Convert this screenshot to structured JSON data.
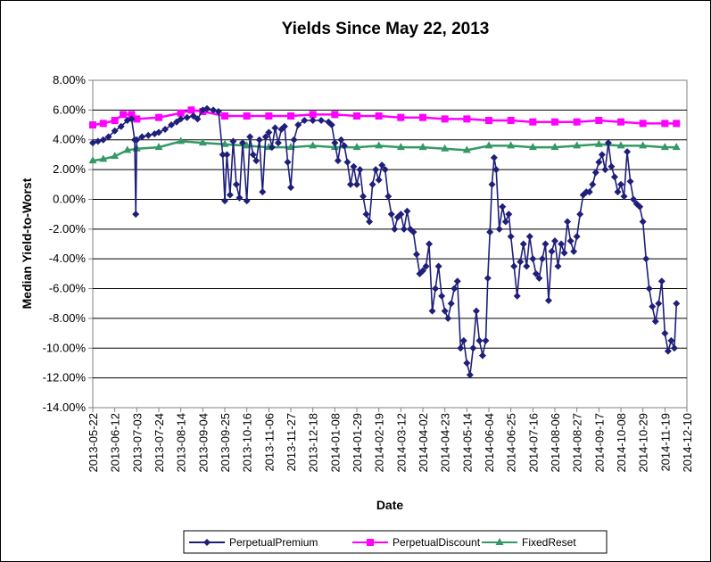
{
  "chart_data": {
    "type": "line",
    "title": "Yields Since May 22, 2013",
    "xlabel": "Date",
    "ylabel": "Median Yield-to-Worst",
    "ylim": [
      -14,
      8
    ],
    "y_ticks": [
      "8.00%",
      "6.00%",
      "4.00%",
      "2.00%",
      "0.00%",
      "-2.00%",
      "-4.00%",
      "-6.00%",
      "-8.00%",
      "-10.00%",
      "-12.00%",
      "-14.00%"
    ],
    "x_ticks": [
      "2013-05-22",
      "2013-06-12",
      "2013-07-03",
      "2013-07-24",
      "2013-08-14",
      "2013-09-04",
      "2013-09-25",
      "2013-10-16",
      "2013-11-06",
      "2013-11-27",
      "2013-12-18",
      "2014-01-08",
      "2014-01-29",
      "2014-02-19",
      "2014-03-12",
      "2014-04-02",
      "2014-04-23",
      "2014-05-14",
      "2014-06-04",
      "2014-06-25",
      "2014-07-16",
      "2014-08-06",
      "2014-08-27",
      "2014-09-17",
      "2014-10-08",
      "2014-10-29",
      "2014-11-19",
      "2014-12-10"
    ],
    "grid": "horizontal",
    "legend_position": "bottom",
    "series": [
      {
        "name": "PerpetualPremium",
        "color": "#1F1F7A",
        "marker": "diamond",
        "points": [
          [
            "2013-05-22",
            3.8
          ],
          [
            "2013-05-27",
            3.9
          ],
          [
            "2013-06-01",
            4.0
          ],
          [
            "2013-06-06",
            4.2
          ],
          [
            "2013-06-12",
            4.6
          ],
          [
            "2013-06-18",
            4.9
          ],
          [
            "2013-06-24",
            5.3
          ],
          [
            "2013-06-28",
            5.4
          ],
          [
            "2013-07-01",
            4.0
          ],
          [
            "2013-07-02",
            -1.0
          ],
          [
            "2013-07-03",
            4.0
          ],
          [
            "2013-07-08",
            4.2
          ],
          [
            "2013-07-14",
            4.3
          ],
          [
            "2013-07-20",
            4.4
          ],
          [
            "2013-07-24",
            4.5
          ],
          [
            "2013-07-30",
            4.7
          ],
          [
            "2013-08-05",
            5.0
          ],
          [
            "2013-08-10",
            5.2
          ],
          [
            "2013-08-14",
            5.4
          ],
          [
            "2013-08-20",
            5.5
          ],
          [
            "2013-08-26",
            5.6
          ],
          [
            "2013-08-30",
            5.4
          ],
          [
            "2013-09-04",
            6.0
          ],
          [
            "2013-09-08",
            6.1
          ],
          [
            "2013-09-14",
            6.0
          ],
          [
            "2013-09-19",
            5.9
          ],
          [
            "2013-09-23",
            3.0
          ],
          [
            "2013-09-25",
            -0.1
          ],
          [
            "2013-09-27",
            3.0
          ],
          [
            "2013-09-30",
            0.3
          ],
          [
            "2013-10-03",
            3.9
          ],
          [
            "2013-10-06",
            1.0
          ],
          [
            "2013-10-09",
            0.1
          ],
          [
            "2013-10-12",
            3.8
          ],
          [
            "2013-10-16",
            -0.1
          ],
          [
            "2013-10-19",
            4.2
          ],
          [
            "2013-10-22",
            3.0
          ],
          [
            "2013-10-25",
            2.6
          ],
          [
            "2013-10-28",
            4.0
          ],
          [
            "2013-10-31",
            0.5
          ],
          [
            "2013-11-03",
            4.2
          ],
          [
            "2013-11-06",
            4.5
          ],
          [
            "2013-11-09",
            3.5
          ],
          [
            "2013-11-12",
            4.8
          ],
          [
            "2013-11-15",
            3.8
          ],
          [
            "2013-11-18",
            4.7
          ],
          [
            "2013-11-21",
            4.9
          ],
          [
            "2013-11-24",
            2.5
          ],
          [
            "2013-11-27",
            0.8
          ],
          [
            "2013-11-30",
            4.0
          ],
          [
            "2013-12-04",
            5.0
          ],
          [
            "2013-12-10",
            5.3
          ],
          [
            "2013-12-18",
            5.3
          ],
          [
            "2013-12-26",
            5.3
          ],
          [
            "2014-01-02",
            5.2
          ],
          [
            "2014-01-05",
            5.0
          ],
          [
            "2014-01-08",
            3.8
          ],
          [
            "2014-01-11",
            2.6
          ],
          [
            "2014-01-14",
            4.0
          ],
          [
            "2014-01-17",
            3.6
          ],
          [
            "2014-01-20",
            2.5
          ],
          [
            "2014-01-23",
            1.0
          ],
          [
            "2014-01-26",
            2.2
          ],
          [
            "2014-01-29",
            1.0
          ],
          [
            "2014-02-01",
            2.0
          ],
          [
            "2014-02-04",
            0.2
          ],
          [
            "2014-02-07",
            -1.0
          ],
          [
            "2014-02-10",
            -1.5
          ],
          [
            "2014-02-13",
            1.0
          ],
          [
            "2014-02-16",
            2.0
          ],
          [
            "2014-02-19",
            1.3
          ],
          [
            "2014-02-22",
            2.3
          ],
          [
            "2014-02-25",
            2.0
          ],
          [
            "2014-02-28",
            0.2
          ],
          [
            "2014-03-03",
            -1.0
          ],
          [
            "2014-03-06",
            -2.0
          ],
          [
            "2014-03-09",
            -1.2
          ],
          [
            "2014-03-12",
            -1.0
          ],
          [
            "2014-03-15",
            -2.0
          ],
          [
            "2014-03-18",
            -0.8
          ],
          [
            "2014-03-21",
            -2.0
          ],
          [
            "2014-03-24",
            -2.2
          ],
          [
            "2014-03-27",
            -3.7
          ],
          [
            "2014-03-30",
            -5.0
          ],
          [
            "2014-04-02",
            -4.8
          ],
          [
            "2014-04-05",
            -4.5
          ],
          [
            "2014-04-08",
            -3.0
          ],
          [
            "2014-04-11",
            -7.5
          ],
          [
            "2014-04-14",
            -6.0
          ],
          [
            "2014-04-17",
            -4.5
          ],
          [
            "2014-04-20",
            -6.5
          ],
          [
            "2014-04-23",
            -7.5
          ],
          [
            "2014-04-26",
            -8.0
          ],
          [
            "2014-04-29",
            -7.0
          ],
          [
            "2014-05-02",
            -6.0
          ],
          [
            "2014-05-05",
            -5.5
          ],
          [
            "2014-05-08",
            -10.0
          ],
          [
            "2014-05-11",
            -9.5
          ],
          [
            "2014-05-14",
            -11.0
          ],
          [
            "2014-05-17",
            -11.8
          ],
          [
            "2014-05-20",
            -10.0
          ],
          [
            "2014-05-23",
            -7.5
          ],
          [
            "2014-05-26",
            -9.5
          ],
          [
            "2014-05-29",
            -10.5
          ],
          [
            "2014-06-01",
            -9.5
          ],
          [
            "2014-06-03",
            -5.3
          ],
          [
            "2014-06-05",
            -2.2
          ],
          [
            "2014-06-07",
            1.0
          ],
          [
            "2014-06-09",
            2.8
          ],
          [
            "2014-06-11",
            2.0
          ],
          [
            "2014-06-14",
            -2.0
          ],
          [
            "2014-06-17",
            -0.5
          ],
          [
            "2014-06-20",
            -1.5
          ],
          [
            "2014-06-23",
            -1.0
          ],
          [
            "2014-06-25",
            -2.5
          ],
          [
            "2014-06-28",
            -4.5
          ],
          [
            "2014-07-01",
            -6.5
          ],
          [
            "2014-07-04",
            -4.2
          ],
          [
            "2014-07-07",
            -3.0
          ],
          [
            "2014-07-10",
            -4.5
          ],
          [
            "2014-07-13",
            -2.5
          ],
          [
            "2014-07-16",
            -4.0
          ],
          [
            "2014-07-19",
            -5.0
          ],
          [
            "2014-07-22",
            -5.3
          ],
          [
            "2014-07-25",
            -4.0
          ],
          [
            "2014-07-28",
            -3.0
          ],
          [
            "2014-07-31",
            -6.8
          ],
          [
            "2014-08-03",
            -3.5
          ],
          [
            "2014-08-06",
            -2.8
          ],
          [
            "2014-08-09",
            -4.5
          ],
          [
            "2014-08-12",
            -3.0
          ],
          [
            "2014-08-15",
            -3.6
          ],
          [
            "2014-08-18",
            -1.5
          ],
          [
            "2014-08-21",
            -2.8
          ],
          [
            "2014-08-24",
            -3.5
          ],
          [
            "2014-08-27",
            -2.5
          ],
          [
            "2014-08-30",
            -1.0
          ],
          [
            "2014-09-02",
            0.3
          ],
          [
            "2014-09-05",
            0.5
          ],
          [
            "2014-09-08",
            0.5
          ],
          [
            "2014-09-11",
            1.0
          ],
          [
            "2014-09-14",
            1.8
          ],
          [
            "2014-09-17",
            2.5
          ],
          [
            "2014-09-20",
            3.0
          ],
          [
            "2014-09-23",
            2.0
          ],
          [
            "2014-09-26",
            3.8
          ],
          [
            "2014-09-29",
            2.2
          ],
          [
            "2014-10-02",
            1.5
          ],
          [
            "2014-10-05",
            0.5
          ],
          [
            "2014-10-08",
            1.0
          ],
          [
            "2014-10-11",
            0.2
          ],
          [
            "2014-10-14",
            3.2
          ],
          [
            "2014-10-17",
            1.2
          ],
          [
            "2014-10-20",
            0.0
          ],
          [
            "2014-10-23",
            -0.3
          ],
          [
            "2014-10-26",
            -0.5
          ],
          [
            "2014-10-29",
            -1.5
          ],
          [
            "2014-11-01",
            -4.0
          ],
          [
            "2014-11-04",
            -6.0
          ],
          [
            "2014-11-07",
            -7.2
          ],
          [
            "2014-11-10",
            -8.2
          ],
          [
            "2014-11-13",
            -7.0
          ],
          [
            "2014-11-16",
            -5.5
          ],
          [
            "2014-11-19",
            -9.0
          ],
          [
            "2014-11-22",
            -10.2
          ],
          [
            "2014-11-25",
            -9.5
          ],
          [
            "2014-11-28",
            -10.0
          ],
          [
            "2014-11-30",
            -7.0
          ]
        ]
      },
      {
        "name": "PerpetualDiscount",
        "color": "#FF00FF",
        "marker": "square",
        "points": [
          [
            "2013-05-22",
            5.0
          ],
          [
            "2013-06-01",
            5.1
          ],
          [
            "2013-06-12",
            5.3
          ],
          [
            "2013-06-20",
            5.7
          ],
          [
            "2013-06-28",
            5.7
          ],
          [
            "2013-07-03",
            5.4
          ],
          [
            "2013-07-24",
            5.5
          ],
          [
            "2013-08-14",
            5.8
          ],
          [
            "2013-08-24",
            6.0
          ],
          [
            "2013-09-04",
            5.9
          ],
          [
            "2013-09-25",
            5.6
          ],
          [
            "2013-10-16",
            5.6
          ],
          [
            "2013-11-06",
            5.6
          ],
          [
            "2013-11-27",
            5.6
          ],
          [
            "2013-12-18",
            5.7
          ],
          [
            "2014-01-08",
            5.7
          ],
          [
            "2014-01-29",
            5.6
          ],
          [
            "2014-02-19",
            5.6
          ],
          [
            "2014-03-12",
            5.5
          ],
          [
            "2014-04-02",
            5.5
          ],
          [
            "2014-04-23",
            5.4
          ],
          [
            "2014-05-14",
            5.4
          ],
          [
            "2014-06-04",
            5.3
          ],
          [
            "2014-06-25",
            5.3
          ],
          [
            "2014-07-16",
            5.2
          ],
          [
            "2014-08-06",
            5.2
          ],
          [
            "2014-08-27",
            5.2
          ],
          [
            "2014-09-17",
            5.3
          ],
          [
            "2014-10-08",
            5.2
          ],
          [
            "2014-10-29",
            5.1
          ],
          [
            "2014-11-19",
            5.1
          ],
          [
            "2014-11-30",
            5.1
          ]
        ]
      },
      {
        "name": "FixedReset",
        "color": "#339966",
        "marker": "triangle",
        "points": [
          [
            "2013-05-22",
            2.6
          ],
          [
            "2013-06-01",
            2.7
          ],
          [
            "2013-06-12",
            2.9
          ],
          [
            "2013-06-24",
            3.3
          ],
          [
            "2013-07-03",
            3.4
          ],
          [
            "2013-07-24",
            3.5
          ],
          [
            "2013-08-14",
            3.9
          ],
          [
            "2013-09-04",
            3.8
          ],
          [
            "2013-09-25",
            3.7
          ],
          [
            "2013-10-16",
            3.6
          ],
          [
            "2013-11-06",
            3.5
          ],
          [
            "2013-11-27",
            3.5
          ],
          [
            "2013-12-18",
            3.6
          ],
          [
            "2014-01-08",
            3.5
          ],
          [
            "2014-01-29",
            3.5
          ],
          [
            "2014-02-19",
            3.6
          ],
          [
            "2014-03-12",
            3.5
          ],
          [
            "2014-04-02",
            3.5
          ],
          [
            "2014-04-23",
            3.4
          ],
          [
            "2014-05-14",
            3.3
          ],
          [
            "2014-06-04",
            3.6
          ],
          [
            "2014-06-25",
            3.6
          ],
          [
            "2014-07-16",
            3.5
          ],
          [
            "2014-08-06",
            3.5
          ],
          [
            "2014-08-27",
            3.6
          ],
          [
            "2014-09-17",
            3.7
          ],
          [
            "2014-10-08",
            3.6
          ],
          [
            "2014-10-29",
            3.6
          ],
          [
            "2014-11-19",
            3.5
          ],
          [
            "2014-11-30",
            3.5
          ]
        ]
      }
    ]
  }
}
